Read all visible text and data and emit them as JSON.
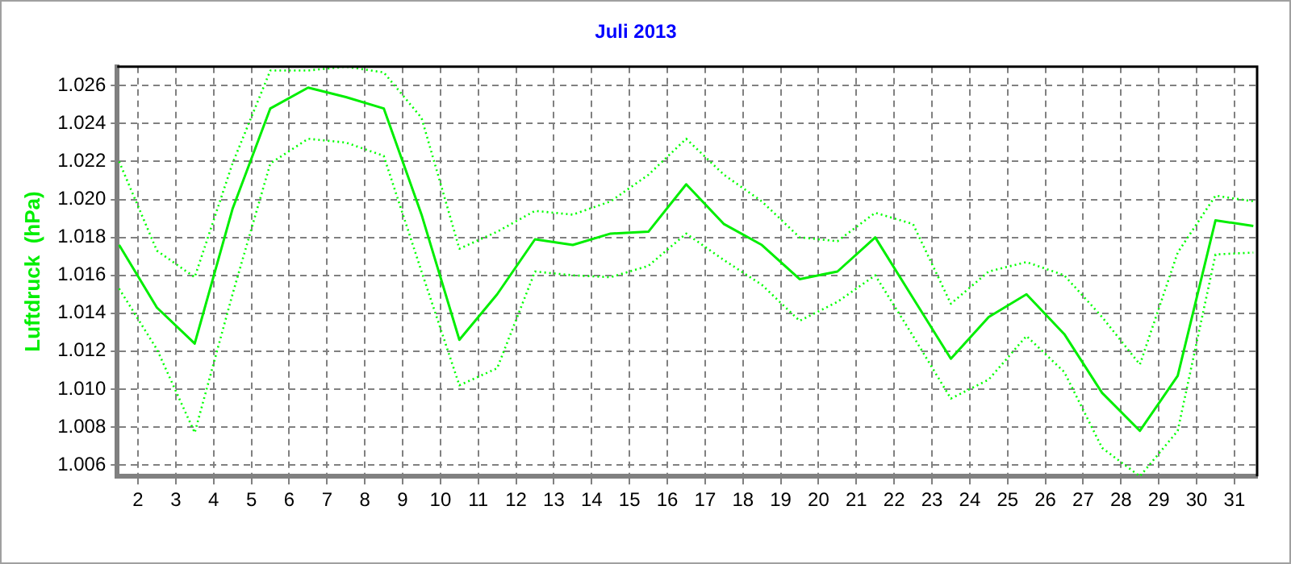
{
  "chart_data": {
    "type": "line",
    "title": "Juli 2013",
    "ylabel": "Luftdruck  (hPa)",
    "x": [
      1.5,
      2.5,
      3.5,
      4.5,
      5.5,
      6.5,
      7.5,
      8.5,
      9.5,
      10.5,
      11.5,
      12.5,
      13.5,
      14.5,
      15.5,
      16.5,
      17.5,
      18.5,
      19.5,
      20.5,
      21.5,
      22.5,
      23.5,
      24.5,
      25.5,
      26.5,
      27.5,
      28.5,
      29.5,
      30.5,
      31.5
    ],
    "series": [
      {
        "color": "#00ff00",
        "line_style": "dotted",
        "values": [
          1.022,
          1.0173,
          1.0159,
          1.0219,
          1.0268,
          1.0268,
          1.027,
          1.0267,
          1.0243,
          1.0174,
          1.0183,
          1.0194,
          1.0192,
          1.0199,
          1.0213,
          1.0232,
          1.0213,
          1.0199,
          1.018,
          1.0178,
          1.0193,
          1.0187,
          1.0145,
          1.0162,
          1.0167,
          1.016,
          1.0138,
          1.0113,
          1.0172,
          1.0202,
          1.0199
        ]
      },
      {
        "color": "#00ee00",
        "line_style": "solid",
        "values": [
          1.0176,
          1.0143,
          1.0124,
          1.0195,
          1.0248,
          1.0259,
          1.0254,
          1.0248,
          1.0192,
          1.0126,
          1.015,
          1.0179,
          1.0176,
          1.0182,
          1.0183,
          1.0208,
          1.0187,
          1.0176,
          1.0158,
          1.0162,
          1.018,
          1.0148,
          1.0116,
          1.0138,
          1.015,
          1.0129,
          1.0098,
          1.0078,
          1.0107,
          1.0189,
          1.0186
        ]
      },
      {
        "color": "#00ff00",
        "line_style": "dotted",
        "values": [
          1.0153,
          1.0121,
          1.0077,
          1.015,
          1.0219,
          1.0232,
          1.023,
          1.0223,
          1.0162,
          1.0102,
          1.0111,
          1.0162,
          1.016,
          1.0159,
          1.0165,
          1.0182,
          1.0168,
          1.0155,
          1.0136,
          1.0146,
          1.016,
          1.0128,
          1.0095,
          1.0105,
          1.0128,
          1.0109,
          1.0069,
          1.0054,
          1.0078,
          1.0171,
          1.0172
        ]
      }
    ],
    "xlim": [
      1.45,
      31.6
    ],
    "ylim": [
      1.0054,
      1.027
    ],
    "xticks": [
      2,
      3,
      4,
      5,
      6,
      7,
      8,
      9,
      10,
      11,
      12,
      13,
      14,
      15,
      16,
      17,
      18,
      19,
      20,
      21,
      22,
      23,
      24,
      25,
      26,
      27,
      28,
      29,
      30,
      31
    ],
    "yticks": [
      1.006,
      1.008,
      {
        "value": 1.01,
        "label": "1.010"
      },
      1.012,
      1.014,
      1.016,
      1.018,
      {
        "value": 1.02,
        "label": "1.020"
      },
      1.022,
      1.024,
      1.026
    ],
    "grid": true,
    "marker": "none"
  }
}
